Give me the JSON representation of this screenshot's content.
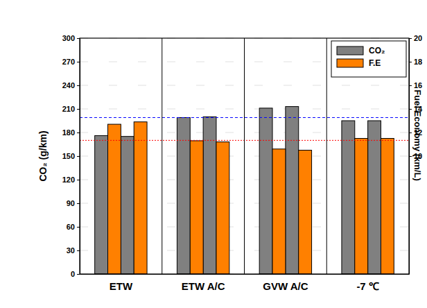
{
  "chart_data": {
    "type": "bar",
    "categories": [
      "ETW",
      "ETW A/C",
      "GVW A/C",
      "-7 ℃"
    ],
    "series": [
      {
        "name": "CO₂",
        "color": "#808080",
        "values": [
          [
            176,
            175
          ],
          [
            199,
            200
          ],
          [
            211,
            213
          ],
          [
            195,
            195
          ]
        ]
      },
      {
        "name": "F.E",
        "color": "#ff8000",
        "axis": "y2",
        "values": [
          [
            12.7,
            12.9
          ],
          [
            11.3,
            11.2
          ],
          [
            10.6,
            10.5
          ],
          [
            11.5,
            11.5
          ]
        ]
      }
    ],
    "y_label": "CO₂ (g/km)",
    "y2_label": "Fuel Economy (km/L)",
    "ylim": [
      0,
      300
    ],
    "yticks": [
      0,
      30,
      60,
      90,
      120,
      150,
      180,
      210,
      240,
      270,
      300
    ],
    "y2lim": [
      0,
      20
    ],
    "y2ticks": [
      10,
      12,
      14,
      16,
      18,
      20
    ],
    "grid": true,
    "legend": "upper right",
    "reference_lines": [
      {
        "value": 199,
        "color": "#0000ff",
        "line_style": "dashed"
      },
      {
        "value": 170,
        "color": "#ff0000",
        "line_style": "dotted"
      }
    ]
  }
}
